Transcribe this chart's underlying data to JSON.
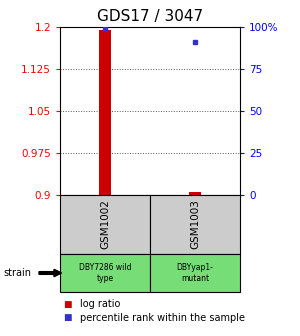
{
  "title": "GDS17 / 3047",
  "samples": [
    "GSM1002",
    "GSM1003"
  ],
  "strains": [
    "DBY7286 wild\ntype",
    "DBYyap1-\nmutant"
  ],
  "log_ratios": [
    1.195,
    0.905
  ],
  "percentile_ranks": [
    99,
    91
  ],
  "ylim_left": [
    0.9,
    1.2
  ],
  "ylim_right": [
    0,
    100
  ],
  "left_ticks": [
    0.9,
    0.975,
    1.05,
    1.125,
    1.2
  ],
  "left_tick_labels": [
    "0.9",
    "0.975",
    "1.05",
    "1.125",
    "1.2"
  ],
  "right_ticks": [
    0,
    25,
    50,
    75,
    100
  ],
  "right_tick_labels": [
    "0",
    "25",
    "50",
    "75",
    "100%"
  ],
  "bar_color": "#cc0000",
  "dot_color": "#3333cc",
  "sample_box_color": "#cccccc",
  "strain_box_color": "#77dd77",
  "title_fontsize": 11,
  "tick_fontsize": 7.5,
  "legend_fontsize": 7,
  "strain_label": "strain",
  "legend_items": [
    {
      "color": "#cc0000",
      "label": "log ratio"
    },
    {
      "color": "#3333cc",
      "label": "percentile rank within the sample"
    }
  ]
}
